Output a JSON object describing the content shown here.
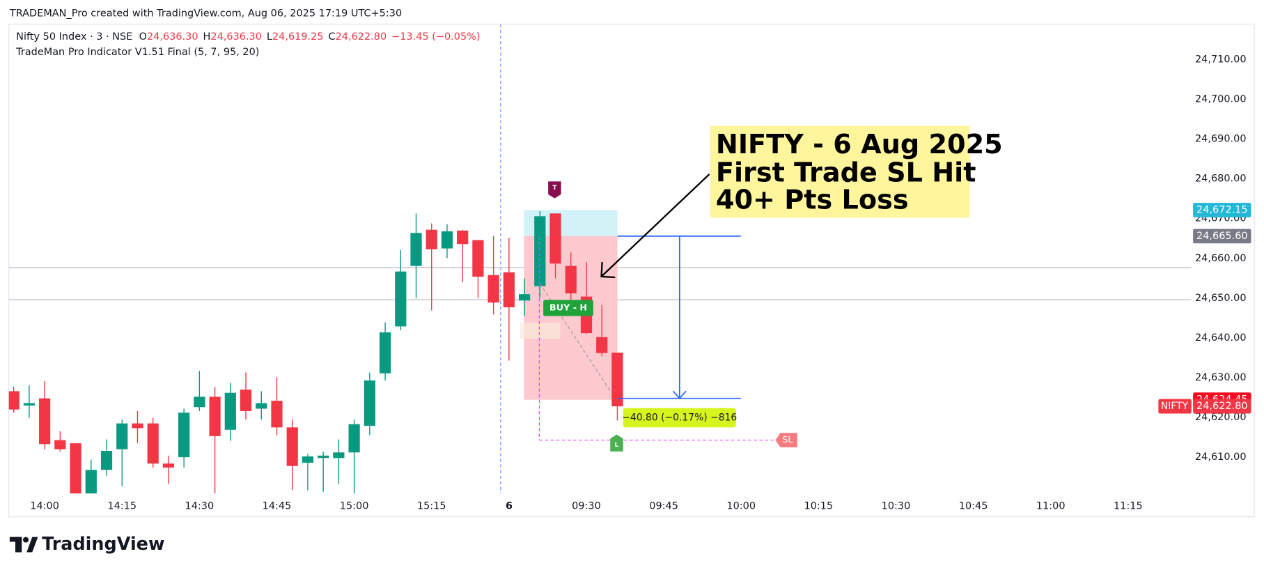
{
  "header": {
    "title": "TRADEMAN_Pro created with TradingView.com, Aug 06, 2025 17:19 UTC+5:30"
  },
  "chart_data": {
    "type": "candlestick",
    "symbol": "Nifty 50 Index · 3 · NSE",
    "ohlc_legend": [
      {
        "key": "O",
        "value": "24,636.30"
      },
      {
        "key": "H",
        "value": "24,636.30"
      },
      {
        "key": "L",
        "value": "24,619.25"
      },
      {
        "key": "C",
        "value": "24,622.80"
      }
    ],
    "change": "−13.45 (−0.05%)",
    "indicator": "TradeMan Pro Indicator V1.51 Final (5, 7, 95, 20)",
    "categories": [
      null,
      null,
      "14:00",
      null,
      null,
      null,
      null,
      "14:15",
      null,
      null,
      null,
      null,
      "14:30",
      null,
      null,
      null,
      null,
      "14:45",
      null,
      null,
      null,
      null,
      "15:00",
      null,
      null,
      null,
      null,
      "15:15",
      null,
      null,
      null,
      null,
      "6",
      null,
      null,
      null,
      null,
      "09:30",
      null,
      null,
      null,
      null,
      "09:45",
      null,
      null,
      null,
      null,
      "10:00",
      null,
      null,
      null,
      null,
      "10:15",
      null,
      null,
      null,
      null,
      "10:30",
      null,
      null,
      null,
      null,
      "10:45",
      null,
      null,
      null,
      null,
      "11:00",
      null,
      null,
      null,
      null,
      "11:15",
      null,
      null,
      null,
      null
    ],
    "open": [
      24626.6,
      24623.0,
      24624.8,
      24614.3,
      24613.5,
      24599.5,
      24606.8,
      24612.0,
      24618.5,
      24618.5,
      24608.4,
      24610.0,
      24622.6,
      24625.2,
      24616.9,
      24627.0,
      24622.2,
      24624.2,
      24617.5,
      24608.6,
      24609.8,
      24609.8,
      24611.2,
      24617.9,
      24631.1,
      24642.9,
      24658.1,
      24667.2,
      24662.5,
      24667.0,
      24664.6,
      24655.8,
      24656.5,
      24649.4,
      24653.0,
      24671.3,
      24658.1,
      24650.4,
      24640.2,
      24636.3,
      null,
      null,
      null,
      null,
      null,
      null,
      null,
      null,
      null,
      null,
      null,
      null,
      null,
      null,
      null,
      null,
      null,
      null,
      null,
      null,
      null,
      null,
      null,
      null,
      null,
      null,
      null,
      null,
      null,
      null,
      null,
      null,
      null,
      null,
      null,
      null,
      null
    ],
    "high": [
      24627.7,
      24628.1,
      24629.1,
      24616.5,
      24613.5,
      24609.4,
      24614.5,
      24619.5,
      24621.6,
      24619.9,
      24610.4,
      24622.2,
      24631.7,
      24627.7,
      24628.7,
      24631.3,
      24626.6,
      24630.1,
      24619.5,
      24610.8,
      24611.4,
      24614.5,
      24619.5,
      24631.3,
      24643.9,
      24662.1,
      24671.3,
      24668.8,
      24668.6,
      24667.2,
      24664.6,
      24665.6,
      24665.2,
      24655.0,
      24671.9,
      24671.3,
      24661.5,
      24659.1,
      24648.3,
      24636.3,
      null,
      null,
      null,
      null,
      null,
      null,
      null,
      null,
      null,
      null,
      null,
      null,
      null,
      null,
      null,
      null,
      null,
      null,
      null,
      null,
      null,
      null,
      null,
      null,
      null,
      null,
      null,
      null,
      null,
      null,
      null,
      null,
      null,
      null,
      null,
      null,
      null
    ],
    "low": [
      24621.2,
      24619.9,
      24612.0,
      24611.4,
      24598.0,
      24597.0,
      24605.3,
      24602.7,
      24613.5,
      24607.4,
      24603.3,
      24607.4,
      24621.6,
      24599.0,
      24614.1,
      24619.5,
      24619.5,
      24615.5,
      24601.7,
      24601.7,
      24601.3,
      24603.3,
      24599.0,
      24615.5,
      24629.3,
      24641.9,
      24650.0,
      24646.9,
      24660.1,
      24654.0,
      24650.0,
      24645.9,
      24634.3,
      24645.5,
      24650.0,
      24655.0,
      24649.6,
      24641.0,
      24635.4,
      24619.25,
      null,
      null,
      null,
      null,
      null,
      null,
      null,
      null,
      null,
      null,
      null,
      null,
      null,
      null,
      null,
      null,
      null,
      null,
      null,
      null,
      null,
      null,
      null,
      null,
      null,
      null,
      null,
      null,
      null,
      null,
      null,
      null,
      null,
      null,
      null,
      null,
      null
    ],
    "close": [
      24622.0,
      24623.6,
      24613.3,
      24612.0,
      24599.5,
      24606.8,
      24611.6,
      24618.5,
      24617.3,
      24608.4,
      24607.4,
      24621.2,
      24625.2,
      24615.3,
      24626.2,
      24621.6,
      24623.6,
      24617.5,
      24607.8,
      24610.2,
      24610.4,
      24611.2,
      24618.3,
      24629.3,
      24641.4,
      24656.7,
      24666.4,
      24662.3,
      24666.8,
      24663.6,
      24655.4,
      24648.9,
      24647.7,
      24651.0,
      24670.6,
      24658.7,
      24651.2,
      24641.2,
      24636.2,
      24622.8,
      null,
      null,
      null,
      null,
      null,
      null,
      null,
      null,
      null,
      null,
      null,
      null,
      null,
      null,
      null,
      null,
      null,
      null,
      null,
      null,
      null,
      null,
      null,
      null,
      null,
      null,
      null,
      null,
      null,
      null,
      null,
      null,
      null,
      null,
      null,
      null,
      null
    ],
    "up_color": "#089981",
    "down_color": "#f23645",
    "ylim": [
      24601.1,
      24718.9
    ],
    "yticks": [
      {
        "value": 24610,
        "label": "24,610.00"
      },
      {
        "value": 24620,
        "label": "24,620.00"
      },
      {
        "value": 24630,
        "label": "24,630.00"
      },
      {
        "value": 24640,
        "label": "24,640.00"
      },
      {
        "value": 24650,
        "label": "24,650.00"
      },
      {
        "value": 24660,
        "label": "24,660.00"
      },
      {
        "value": 24670,
        "label": "24,670.00"
      },
      {
        "value": 24680,
        "label": "24,680.00"
      },
      {
        "value": 24690,
        "label": "24,690.00"
      },
      {
        "value": 24700,
        "label": "24,700.00"
      },
      {
        "value": 24710,
        "label": "24,710.00"
      }
    ],
    "grid": false,
    "levels": [
      24657.7,
      24649.6
    ],
    "position": {
      "target": {
        "value": 24672.15,
        "label": "24,672.15"
      },
      "entry": {
        "value": 24665.6,
        "label": "24,665.60"
      },
      "stop": {
        "value": 24624.45,
        "label": "24,624.45"
      }
    },
    "last_price": {
      "symbol": "NIFTY",
      "value": 24622.8,
      "label": "24,622.80"
    },
    "measure": {
      "from": 24665.6,
      "to": 24624.8,
      "label": "−40.80 (−0.17%) −816"
    },
    "stop_line": {
      "value": 24614.3,
      "label": "SL"
    },
    "markers": [
      {
        "label": "T"
      },
      {
        "label": "L"
      },
      {
        "label": "BUY - H"
      }
    ],
    "annotation": {
      "lines": [
        "NIFTY - 6 Aug 2025",
        "First Trade SL Hit",
        "40+ Pts Loss"
      ]
    }
  },
  "footer": {
    "brand": "TradingView"
  }
}
